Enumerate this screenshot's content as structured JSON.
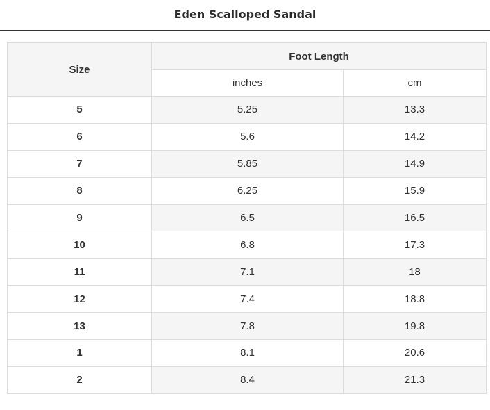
{
  "page": {
    "title": "Eden Scalloped Sandal"
  },
  "table": {
    "size_header": "Size",
    "foot_length_header": "Foot Length",
    "unit_inches": "inches",
    "unit_cm": "cm",
    "rows": [
      {
        "size": "5",
        "inches": "5.25",
        "cm": "13.3"
      },
      {
        "size": "6",
        "inches": "5.6",
        "cm": "14.2"
      },
      {
        "size": "7",
        "inches": "5.85",
        "cm": "14.9"
      },
      {
        "size": "8",
        "inches": "6.25",
        "cm": "15.9"
      },
      {
        "size": "9",
        "inches": "6.5",
        "cm": "16.5"
      },
      {
        "size": "10",
        "inches": "6.8",
        "cm": "17.3"
      },
      {
        "size": "11",
        "inches": "7.1",
        "cm": "18"
      },
      {
        "size": "12",
        "inches": "7.4",
        "cm": "18.8"
      },
      {
        "size": "13",
        "inches": "7.8",
        "cm": "19.8"
      },
      {
        "size": "1",
        "inches": "8.1",
        "cm": "20.6"
      },
      {
        "size": "2",
        "inches": "8.4",
        "cm": "21.3"
      }
    ]
  },
  "colors": {
    "text": "#333333",
    "stripe": "#f5f5f5",
    "border": "#dddddd"
  }
}
